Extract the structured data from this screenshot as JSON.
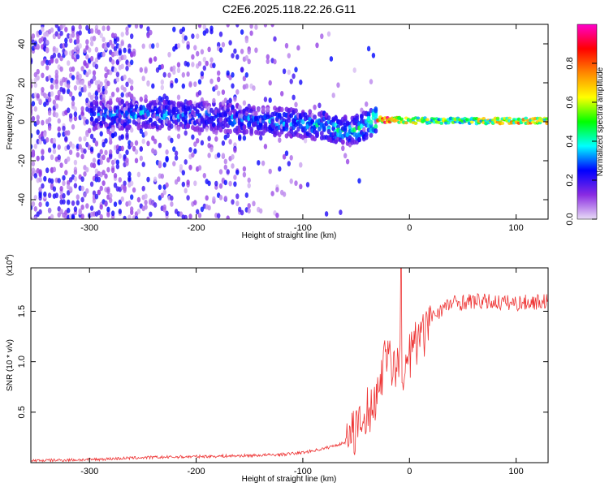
{
  "chart_data": [
    {
      "type": "heatmap",
      "title": "C2E6.2025.118.22.26.G11",
      "xlabel": "Height of straight line (km)",
      "ylabel": "Frequency (Hz)",
      "xlim": [
        -355,
        130
      ],
      "ylim": [
        -50,
        50
      ],
      "xticks": [
        -300,
        -200,
        -100,
        0,
        100
      ],
      "yticks": [
        -40,
        -20,
        0,
        20,
        40
      ],
      "grid": false,
      "colorbar": {
        "label": "Normalized spectral amplitude",
        "range": [
          0,
          1
        ],
        "ticks": [
          0.0,
          0.2,
          0.4,
          0.6,
          0.8
        ],
        "colormap": [
          "#e8dcf6",
          "#8a2be2",
          "#0000ff",
          "#00ffff",
          "#00ff00",
          "#ffff00",
          "#ff8800",
          "#ff0000",
          "#ff00cc"
        ]
      },
      "ridge": {
        "x": [
          -290,
          -250,
          -200,
          -150,
          -100,
          -75,
          -55,
          -40,
          -30,
          -20,
          0,
          50,
          100,
          130
        ],
        "frequency": [
          3,
          4,
          3,
          1,
          -1,
          -3,
          -5,
          -2,
          1,
          1,
          0.5,
          0.5,
          0.5,
          0.5
        ],
        "peak_amplitude": [
          0.3,
          0.35,
          0.3,
          0.3,
          0.35,
          0.4,
          0.4,
          0.45,
          0.8,
          0.9,
          0.6,
          0.6,
          0.75,
          0.7
        ]
      }
    },
    {
      "type": "line",
      "xlabel": "Height of straight line (km)",
      "ylabel": "SNR (10 * v/v)",
      "yexponent": "(x10",
      "yexponent_power": "4",
      "yexponent_close": ")",
      "xlim": [
        -355,
        130
      ],
      "ylim": [
        0,
        1.93
      ],
      "xticks": [
        -300,
        -200,
        -100,
        0,
        100
      ],
      "yticks": [
        0.5,
        1.0,
        1.5
      ],
      "ytick_labels": [
        "0.5",
        "1.0",
        "1.5"
      ],
      "color": "#ee3333",
      "series": [
        {
          "x": [
            -355,
            -300,
            -250,
            -200,
            -150,
            -120,
            -100,
            -80,
            -60,
            -50,
            -40,
            -30,
            -25,
            -20,
            -15,
            -10,
            -5,
            0,
            10,
            20,
            30,
            40,
            60,
            80,
            100,
            130
          ],
          "values": [
            0.02,
            0.03,
            0.05,
            0.06,
            0.07,
            0.08,
            0.1,
            0.14,
            0.2,
            0.3,
            0.45,
            0.72,
            0.95,
            1.15,
            0.9,
            1.0,
            0.85,
            1.05,
            1.25,
            1.45,
            1.52,
            1.58,
            1.6,
            1.59,
            1.58,
            1.6
          ]
        }
      ]
    }
  ]
}
